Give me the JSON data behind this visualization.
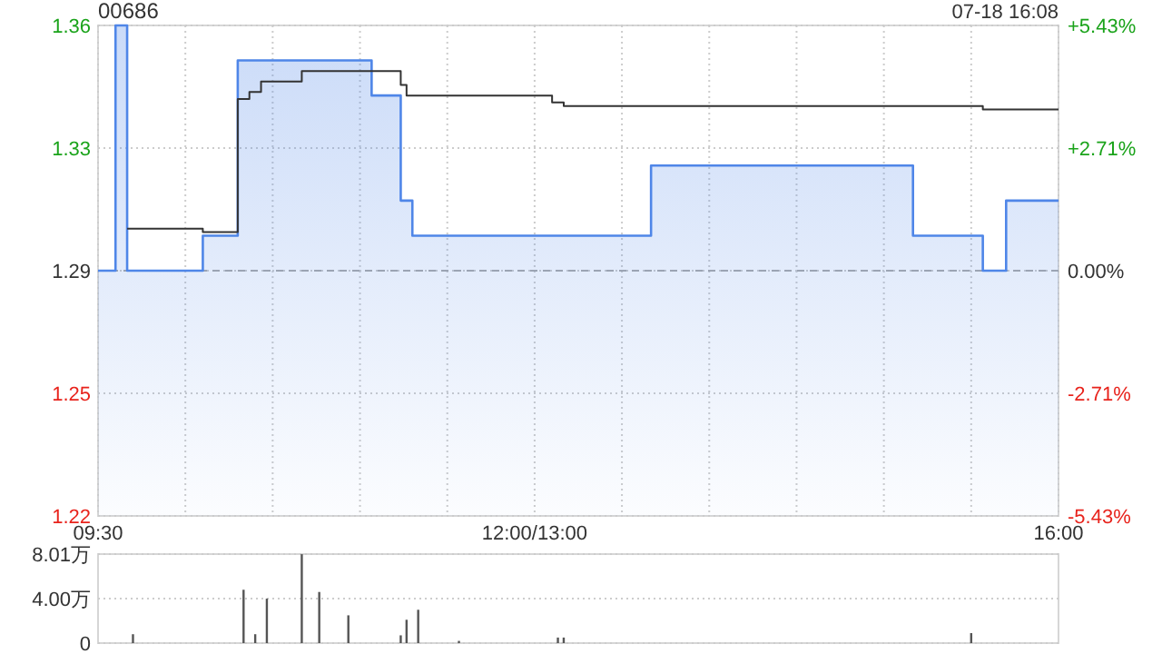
{
  "chart_data": [
    {
      "type": "step",
      "title": "00686",
      "annotations": [
        "07-18 16:08"
      ],
      "categories": [
        "09:30",
        null,
        null,
        null,
        null,
        null,
        null,
        null,
        null,
        null,
        null,
        null,
        null,
        null,
        null,
        null,
        null,
        null,
        null,
        null,
        null,
        null,
        null,
        null,
        null,
        null,
        null,
        null,
        null,
        null,
        null,
        null,
        null,
        null,
        null,
        null,
        null,
        null,
        null,
        null,
        null,
        null,
        null,
        null,
        null,
        null,
        null,
        null,
        null,
        null,
        null,
        null,
        null,
        null,
        null,
        null,
        null,
        null,
        null,
        null,
        null,
        null,
        null,
        null,
        null,
        null,
        null,
        null,
        null,
        null,
        null,
        null,
        null,
        null,
        null,
        "12:00/13:00",
        null,
        null,
        null,
        null,
        null,
        null,
        null,
        null,
        null,
        null,
        null,
        null,
        null,
        null,
        null,
        null,
        null,
        null,
        null,
        null,
        null,
        null,
        null,
        null,
        null,
        null,
        null,
        null,
        null,
        null,
        null,
        null,
        null,
        null,
        null,
        null,
        null,
        null,
        null,
        null,
        null,
        null,
        null,
        null,
        null,
        null,
        null,
        null,
        null,
        null,
        null,
        null,
        null,
        null,
        null,
        null,
        null,
        null,
        null,
        null,
        null,
        null,
        null,
        null,
        null,
        null,
        null,
        null,
        null,
        null,
        null,
        null,
        null,
        null,
        null,
        null,
        null,
        null,
        null,
        null,
        null,
        null,
        null,
        null,
        null,
        null,
        null,
        null,
        null,
        "16:00"
      ],
      "ylim": [
        1.22,
        1.36
      ],
      "yticks": [
        {
          "value": 1.22,
          "label": "1.22"
        },
        {
          "value": 1.255,
          "label": "1.25"
        },
        {
          "value": 1.29,
          "label": "1.29"
        },
        {
          "value": 1.325,
          "label": "1.33"
        },
        {
          "value": 1.36,
          "label": "1.36"
        }
      ],
      "y2lim": [
        -5.43,
        5.43
      ],
      "y2ticks": [
        {
          "value": -5.43,
          "label": "-5.43%"
        },
        {
          "value": -2.71,
          "label": "-2.71%"
        },
        {
          "value": 0,
          "label": "0.00%"
        },
        {
          "value": 2.71,
          "label": "+2.71%"
        },
        {
          "value": 5.43,
          "label": "+5.43%"
        }
      ],
      "grid": true,
      "ref_lines": [
        {
          "axis": "y",
          "value": 1.29,
          "line_style": "dashed",
          "color": "#aaaaaa"
        }
      ],
      "series": [
        {
          "type": "area",
          "color": "#4f86e8",
          "values": [
            1.29,
            1.29,
            1.29,
            1.36,
            1.36,
            1.29,
            1.29,
            1.29,
            1.29,
            1.29,
            1.29,
            1.29,
            1.29,
            1.29,
            1.29,
            1.29,
            1.29,
            1.29,
            1.3,
            1.3,
            1.3,
            1.3,
            1.3,
            1.3,
            1.35,
            1.35,
            1.35,
            1.35,
            1.35,
            1.35,
            1.35,
            1.35,
            1.35,
            1.35,
            1.35,
            1.35,
            1.35,
            1.35,
            1.35,
            1.35,
            1.35,
            1.35,
            1.35,
            1.35,
            1.35,
            1.35,
            1.35,
            1.34,
            1.34,
            1.34,
            1.34,
            1.34,
            1.31,
            1.31,
            1.3,
            1.3,
            1.3,
            1.3,
            1.3,
            1.3,
            1.3,
            1.3,
            1.3,
            1.3,
            1.3,
            1.3,
            1.3,
            1.3,
            1.3,
            1.3,
            1.3,
            1.3,
            1.3,
            1.3,
            1.3,
            1.3,
            1.3,
            1.3,
            1.3,
            1.3,
            1.3,
            1.3,
            1.3,
            1.3,
            1.3,
            1.3,
            1.3,
            1.3,
            1.3,
            1.3,
            1.3,
            1.3,
            1.3,
            1.3,
            1.3,
            1.32,
            1.32,
            1.32,
            1.32,
            1.32,
            1.32,
            1.32,
            1.32,
            1.32,
            1.32,
            1.32,
            1.32,
            1.32,
            1.32,
            1.32,
            1.32,
            1.32,
            1.32,
            1.32,
            1.32,
            1.32,
            1.32,
            1.32,
            1.32,
            1.32,
            1.32,
            1.32,
            1.32,
            1.32,
            1.32,
            1.32,
            1.32,
            1.32,
            1.32,
            1.32,
            1.32,
            1.32,
            1.32,
            1.32,
            1.32,
            1.32,
            1.32,
            1.32,
            1.32,
            1.32,
            1.3,
            1.3,
            1.3,
            1.3,
            1.3,
            1.3,
            1.3,
            1.3,
            1.3,
            1.3,
            1.3,
            1.3,
            1.29,
            1.29,
            1.29,
            1.29,
            1.31,
            1.31,
            1.31,
            1.31,
            1.31,
            1.31,
            1.31,
            1.31,
            1.31,
            1.31
          ]
        },
        {
          "color": "#333333",
          "values": [
            null,
            null,
            null,
            null,
            null,
            1.302,
            1.302,
            1.302,
            1.302,
            1.302,
            1.302,
            1.302,
            1.302,
            1.302,
            1.302,
            1.302,
            1.302,
            1.302,
            1.301,
            1.301,
            1.301,
            1.301,
            1.301,
            1.301,
            1.339,
            1.339,
            1.341,
            1.341,
            1.344,
            1.344,
            1.344,
            1.344,
            1.344,
            1.344,
            1.344,
            1.347,
            1.347,
            1.347,
            1.347,
            1.347,
            1.347,
            1.347,
            1.347,
            1.347,
            1.347,
            1.347,
            1.347,
            1.347,
            1.347,
            1.347,
            1.347,
            1.347,
            1.343,
            1.34,
            1.34,
            1.34,
            1.34,
            1.34,
            1.34,
            1.34,
            1.34,
            1.34,
            1.34,
            1.34,
            1.34,
            1.34,
            1.34,
            1.34,
            1.34,
            1.34,
            1.34,
            1.34,
            1.34,
            1.34,
            1.34,
            1.34,
            1.34,
            1.34,
            1.338,
            1.338,
            1.337,
            1.337,
            1.337,
            1.337,
            1.337,
            1.337,
            1.337,
            1.337,
            1.337,
            1.337,
            1.337,
            1.337,
            1.337,
            1.337,
            1.337,
            1.337,
            1.337,
            1.337,
            1.337,
            1.337,
            1.337,
            1.337,
            1.337,
            1.337,
            1.337,
            1.337,
            1.337,
            1.337,
            1.337,
            1.337,
            1.337,
            1.337,
            1.337,
            1.337,
            1.337,
            1.337,
            1.337,
            1.337,
            1.337,
            1.337,
            1.337,
            1.337,
            1.337,
            1.337,
            1.337,
            1.337,
            1.337,
            1.337,
            1.337,
            1.337,
            1.337,
            1.337,
            1.337,
            1.337,
            1.337,
            1.337,
            1.337,
            1.337,
            1.337,
            1.337,
            1.337,
            1.337,
            1.337,
            1.337,
            1.337,
            1.337,
            1.337,
            1.337,
            1.337,
            1.337,
            1.337,
            1.337,
            1.336,
            1.336,
            1.336,
            1.336,
            1.336,
            1.336,
            1.336,
            1.336,
            1.336,
            1.336,
            1.336,
            1.336,
            1.336,
            1.336
          ]
        }
      ]
    },
    {
      "type": "bar",
      "categories": [
        null,
        null,
        null,
        null,
        null,
        null,
        null,
        null,
        null,
        null,
        null,
        null,
        null,
        null,
        null,
        null,
        null,
        null,
        null,
        null,
        null,
        null,
        null,
        null,
        null,
        null,
        null,
        null,
        null,
        null,
        null,
        null,
        null,
        null,
        null,
        null,
        null,
        null,
        null,
        null,
        null,
        null,
        null,
        null,
        null,
        null,
        null,
        null,
        null,
        null,
        null,
        null,
        null,
        null,
        null,
        null,
        null,
        null,
        null,
        null,
        null,
        null,
        null,
        null,
        null,
        null,
        null,
        null,
        null,
        null,
        null,
        null,
        null,
        null,
        null,
        null,
        null,
        null,
        null,
        null,
        null,
        null,
        null,
        null,
        null,
        null,
        null,
        null,
        null,
        null,
        null,
        null,
        null,
        null,
        null,
        null,
        null,
        null,
        null,
        null,
        null,
        null,
        null,
        null,
        null,
        null,
        null,
        null,
        null,
        null,
        null,
        null,
        null,
        null,
        null,
        null,
        null,
        null,
        null,
        null,
        null,
        null,
        null,
        null,
        null,
        null,
        null,
        null,
        null,
        null,
        null,
        null,
        null,
        null,
        null,
        null,
        null,
        null,
        null,
        null,
        null,
        null,
        null,
        null,
        null,
        null,
        null,
        null,
        null,
        null,
        null,
        null,
        null,
        null,
        null,
        null,
        null,
        null,
        null,
        null,
        null,
        null,
        null,
        null,
        null,
        null
      ],
      "ylim": [
        0,
        8.01
      ],
      "yticks": [
        {
          "value": 0,
          "label": "0"
        },
        {
          "value": 4.0,
          "label": "4.00万"
        },
        {
          "value": 8.01,
          "label": "8.01万"
        }
      ],
      "grid": "y",
      "tick_labels": "y",
      "series": [
        {
          "color": "#555555",
          "values": [
            null,
            null,
            null,
            null,
            null,
            null,
            0.8,
            null,
            null,
            null,
            null,
            null,
            null,
            null,
            null,
            null,
            null,
            null,
            null,
            null,
            null,
            null,
            null,
            null,
            null,
            4.8,
            null,
            0.8,
            null,
            4.0,
            null,
            null,
            null,
            null,
            null,
            8.0,
            null,
            null,
            4.6,
            null,
            null,
            null,
            null,
            2.5,
            null,
            null,
            null,
            null,
            null,
            null,
            null,
            null,
            0.7,
            2.1,
            null,
            3.0,
            null,
            null,
            null,
            null,
            null,
            null,
            0.2,
            null,
            null,
            null,
            null,
            null,
            null,
            null,
            null,
            null,
            null,
            null,
            null,
            null,
            null,
            null,
            null,
            0.5,
            0.5,
            null,
            null,
            null,
            null,
            null,
            null,
            null,
            null,
            null,
            null,
            null,
            null,
            null,
            null,
            null,
            null,
            null,
            null,
            null,
            null,
            null,
            null,
            null,
            null,
            null,
            null,
            null,
            null,
            null,
            null,
            null,
            null,
            null,
            null,
            null,
            null,
            null,
            null,
            null,
            null,
            null,
            null,
            null,
            null,
            null,
            null,
            null,
            null,
            null,
            null,
            null,
            null,
            null,
            null,
            null,
            null,
            null,
            null,
            null,
            null,
            null,
            null,
            null,
            null,
            null,
            null,
            null,
            null,
            null,
            0.9,
            null,
            null,
            null,
            null,
            null,
            null,
            null,
            null,
            null,
            null,
            null,
            null,
            null,
            null,
            null
          ]
        }
      ]
    }
  ]
}
